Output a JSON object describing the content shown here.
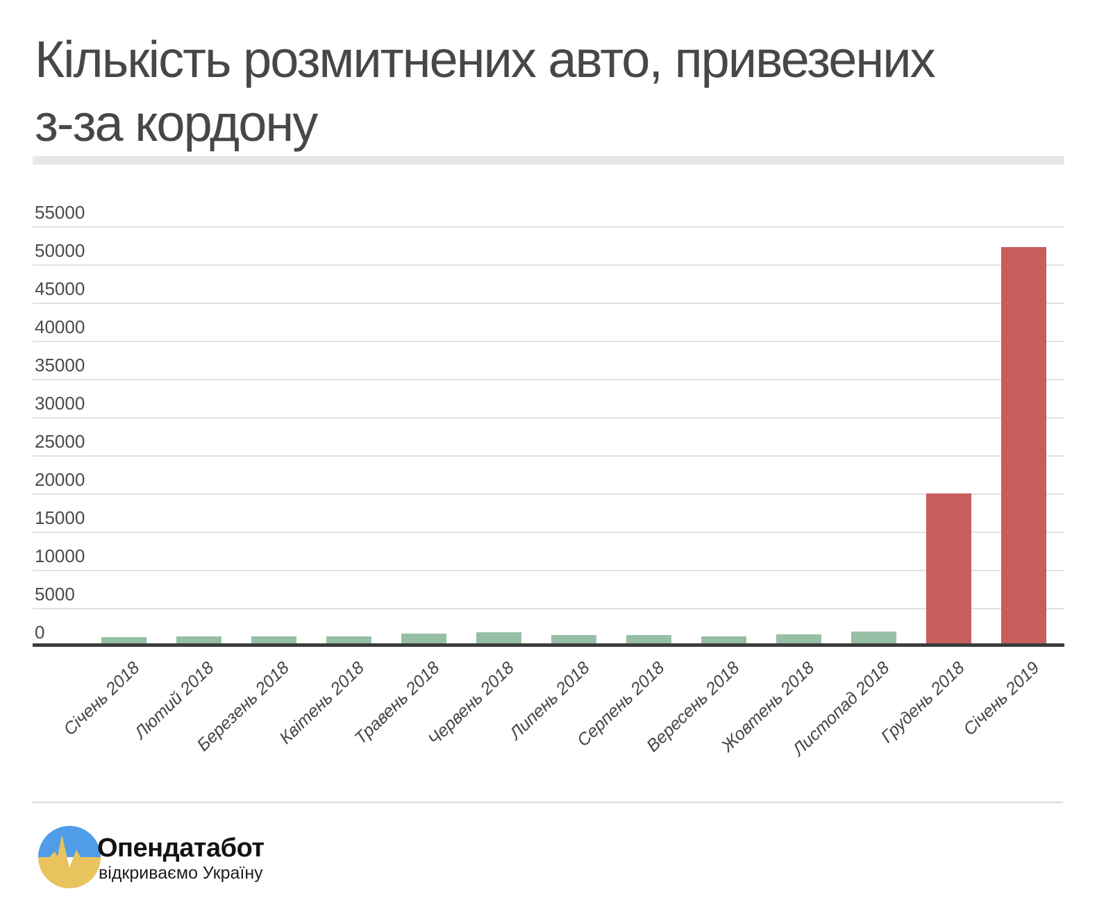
{
  "header": {
    "title_lines": [
      "Кількість розмитнених авто, привезених",
      "з-за кордону"
    ]
  },
  "chart_data": {
    "type": "bar",
    "title": "Кількість розмитнених авто, привезених з-за кордону",
    "categories": [
      "Січень 2018",
      "Лютий 2018",
      "Березень 2018",
      "Квітень 2018",
      "Травень 2018",
      "Червень 2018",
      "Липень 2018",
      "Серпень 2018",
      "Вересень 2018",
      "Жовтень 2018",
      "Листопад 2018",
      "Грудень 2018",
      "Січень 2019"
    ],
    "values": [
      1150,
      1300,
      1300,
      1300,
      1600,
      1800,
      1500,
      1500,
      1300,
      1550,
      1950,
      20000,
      52300
    ],
    "bar_colors": [
      "#96bfa5",
      "#96bfa5",
      "#96bfa5",
      "#96bfa5",
      "#96bfa5",
      "#96bfa5",
      "#96bfa5",
      "#96bfa5",
      "#96bfa5",
      "#96bfa5",
      "#96bfa5",
      "#c75d5c",
      "#c75d5c"
    ],
    "colors": {
      "regular_bar": "#96bfa5",
      "highlight_bar": "#c75d5c"
    },
    "xlabel": "",
    "ylabel": "",
    "ylim": [
      0,
      55000
    ],
    "yticks": [
      0,
      5000,
      10000,
      15000,
      20000,
      25000,
      30000,
      35000,
      40000,
      45000,
      50000,
      55000
    ],
    "grid": true,
    "legend": "none"
  },
  "footer": {
    "brand": "Опендатабот",
    "tagline": "відкриваємо Україну",
    "logo_colors": {
      "blue": "#4f9ce8",
      "yellow": "#e9c35e"
    }
  }
}
